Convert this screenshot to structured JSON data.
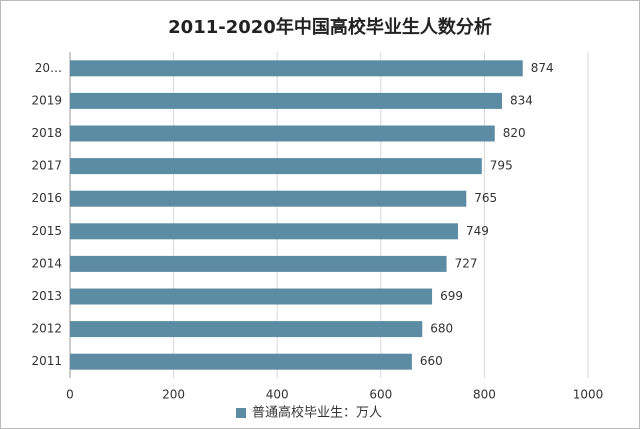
{
  "chart_data": {
    "type": "barh",
    "title": "2011-2020年中国高校毕业生人数分析",
    "categories": [
      "20…",
      "2019",
      "2018",
      "2017",
      "2016",
      "2015",
      "2014",
      "2013",
      "2012",
      "2011"
    ],
    "series": [
      {
        "name": "普通高校毕业生：万人",
        "color": "#5b8ca3",
        "values": [
          874,
          834,
          820,
          795,
          765,
          749,
          727,
          699,
          680,
          660
        ]
      }
    ],
    "xlim": [
      0,
      1000
    ],
    "xticks": [
      0,
      200,
      400,
      600,
      800,
      1000
    ],
    "grid": true,
    "legend": "bottom"
  }
}
